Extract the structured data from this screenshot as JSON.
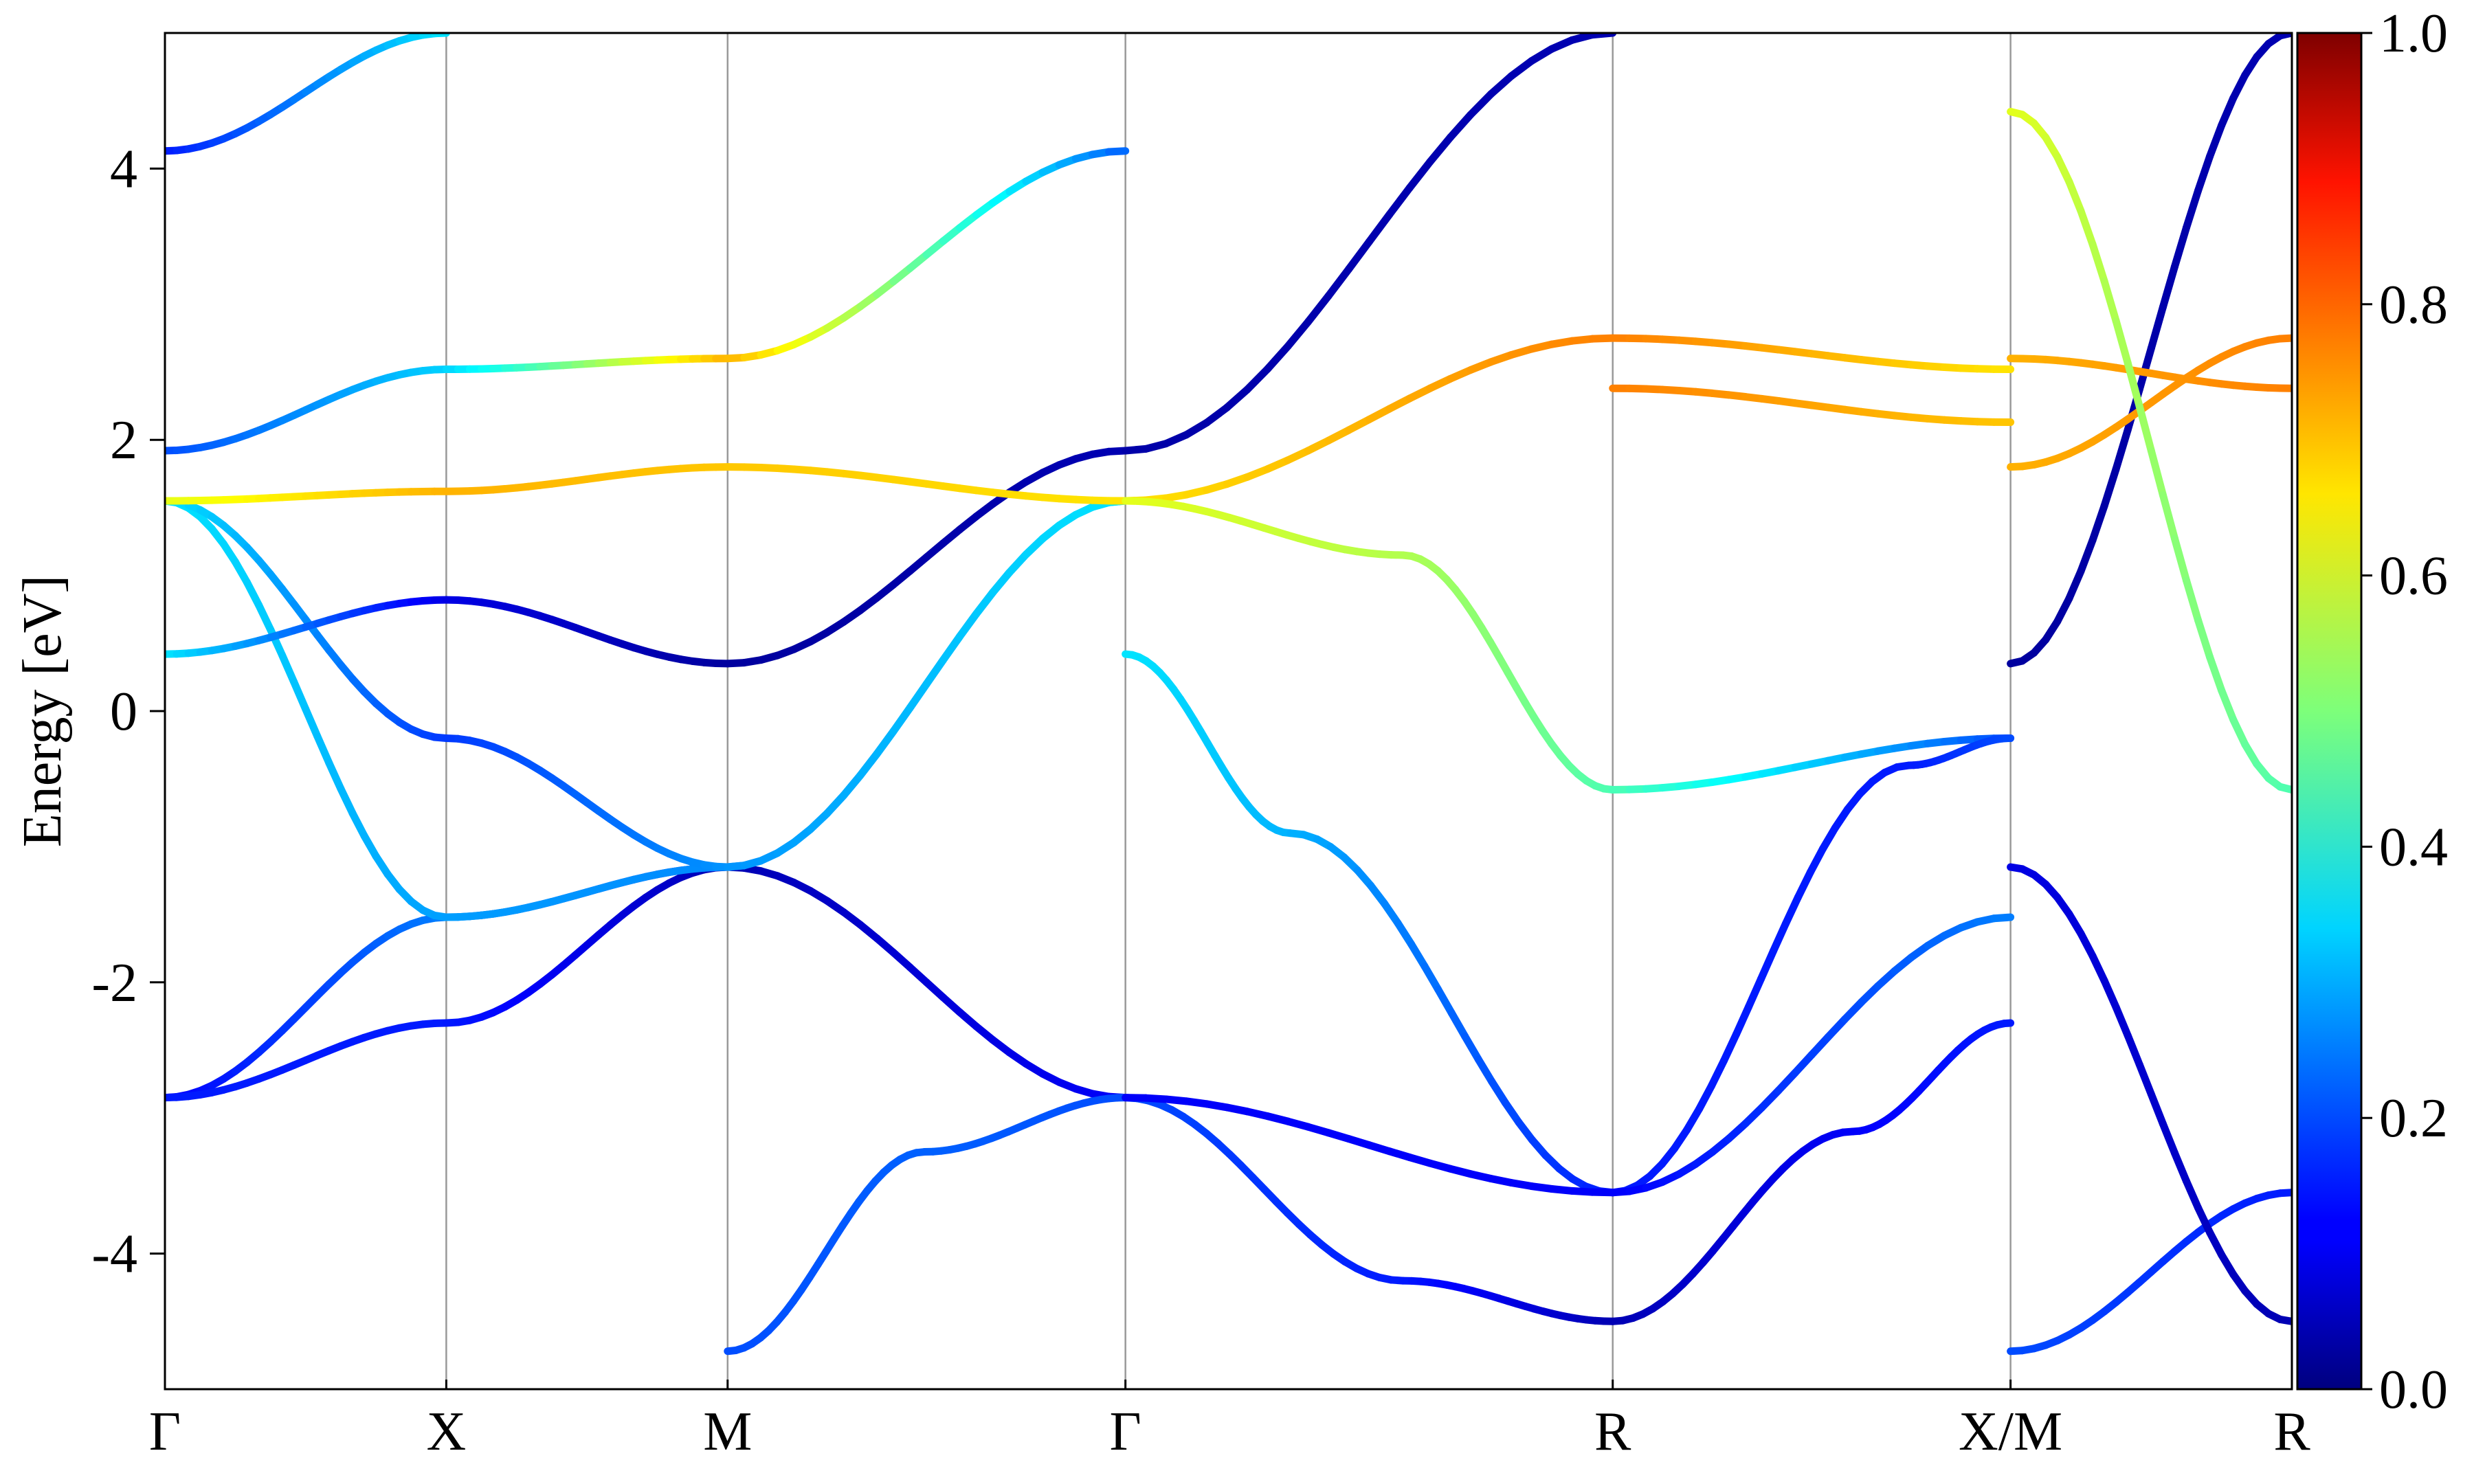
{
  "chart_data": {
    "type": "line",
    "title": "",
    "xlabel": "",
    "ylabel": "Energy [eV]",
    "ylim": [
      -5,
      5
    ],
    "yticks": [
      -4,
      -2,
      0,
      2,
      4
    ],
    "k_points": [
      {
        "label": "Γ",
        "x": 0.0
      },
      {
        "label": "X",
        "x": 0.5
      },
      {
        "label": "M",
        "x": 1.0
      },
      {
        "label": "Γ",
        "x": 1.707
      },
      {
        "label": "R",
        "x": 2.573
      },
      {
        "label": "X/M",
        "x": 3.28
      },
      {
        "label": "R",
        "x": 3.78
      }
    ],
    "grid": "vertical lines at high-symmetry k-points",
    "colorbar": {
      "colormap": "jet",
      "range": [
        0.0,
        1.0
      ],
      "ticks": [
        "0.0",
        "0.2",
        "0.4",
        "0.6",
        "0.8",
        "1.0"
      ]
    },
    "series": [
      {
        "points": [
          [
            0,
            -2.85,
            0.12
          ],
          [
            0.5,
            -1.52,
            0.25
          ],
          [
            1.0,
            -1.15,
            0.1
          ]
        ]
      },
      {
        "points": [
          [
            0,
            -2.85,
            0.15
          ],
          [
            0.5,
            -2.3,
            0.15
          ],
          [
            1.0,
            -1.15,
            0.05
          ],
          [
            1.707,
            -2.85,
            0.12
          ]
        ]
      },
      {
        "points": [
          [
            0,
            1.55,
            0.35
          ],
          [
            0.5,
            -1.52,
            0.28
          ],
          [
            1.0,
            -1.15,
            0.26
          ],
          [
            1.707,
            1.55,
            0.35
          ]
        ]
      },
      {
        "points": [
          [
            0,
            1.55,
            0.35
          ],
          [
            0.5,
            -0.2,
            0.18
          ],
          [
            1.0,
            -1.15,
            0.27
          ],
          [
            1.707,
            1.55,
            0.35
          ]
        ]
      },
      {
        "points": [
          [
            0,
            0.42,
            0.35
          ],
          [
            0.5,
            0.82,
            0.1
          ],
          [
            1.0,
            0.35,
            0.03
          ],
          [
            1.707,
            1.92,
            0.05
          ]
        ]
      },
      {
        "points": [
          [
            0,
            1.92,
            0.2
          ],
          [
            0.5,
            2.52,
            0.33
          ],
          [
            1.0,
            2.6,
            0.7
          ],
          [
            1.707,
            4.13,
            0.22
          ]
        ]
      },
      {
        "points": [
          [
            0,
            4.13,
            0.15
          ],
          [
            0.5,
            5.0,
            0.35
          ]
        ]
      },
      {
        "points": [
          [
            0,
            1.55,
            0.6
          ],
          [
            0.5,
            1.62,
            0.7
          ],
          [
            1.0,
            1.8,
            0.68
          ],
          [
            1.707,
            1.55,
            0.65
          ]
        ]
      },
      {
        "points": [
          [
            1.0,
            -4.72,
            0.2
          ],
          [
            1.35,
            -3.25,
            0.22
          ],
          [
            1.707,
            -2.85,
            0.2
          ],
          [
            2.2,
            -4.2,
            0.15
          ],
          [
            2.573,
            -4.5,
            0.05
          ],
          [
            3.0,
            -3.1,
            0.12
          ],
          [
            3.28,
            -2.3,
            0.15
          ]
        ]
      },
      {
        "points": [
          [
            1.707,
            1.92,
            0.04
          ],
          [
            2.573,
            5.0,
            0.05
          ]
        ]
      },
      {
        "points": [
          [
            1.707,
            1.55,
            0.65
          ],
          [
            2.573,
            2.75,
            0.75
          ],
          [
            3.28,
            2.52,
            0.65
          ]
        ]
      },
      {
        "points": [
          [
            1.707,
            1.55,
            0.6
          ],
          [
            2.2,
            1.15,
            0.55
          ],
          [
            2.573,
            -0.58,
            0.45
          ],
          [
            3.28,
            -0.2,
            0.2
          ]
        ]
      },
      {
        "points": [
          [
            1.707,
            0.42,
            0.35
          ],
          [
            2.0,
            -0.9,
            0.3
          ],
          [
            2.573,
            -3.55,
            0.15
          ],
          [
            3.1,
            -0.4,
            0.15
          ],
          [
            3.28,
            -0.2,
            0.2
          ]
        ]
      },
      {
        "points": [
          [
            1.707,
            -2.85,
            0.12
          ],
          [
            2.573,
            -3.55,
            0.12
          ],
          [
            3.28,
            -1.52,
            0.25
          ]
        ]
      },
      {
        "points": [
          [
            2.573,
            2.38,
            0.75
          ],
          [
            3.28,
            2.13,
            0.68
          ]
        ]
      },
      {
        "points": [
          [
            3.28,
            0.35,
            0.03
          ],
          [
            3.78,
            5.0,
            0.05
          ]
        ]
      },
      {
        "points": [
          [
            3.28,
            -4.72,
            0.2
          ],
          [
            3.78,
            -3.55,
            0.15
          ]
        ]
      },
      {
        "points": [
          [
            3.28,
            -1.15,
            0.1
          ],
          [
            3.78,
            -4.5,
            0.05
          ]
        ]
      },
      {
        "points": [
          [
            3.28,
            1.8,
            0.7
          ],
          [
            3.78,
            2.75,
            0.75
          ]
        ]
      },
      {
        "points": [
          [
            3.28,
            2.6,
            0.7
          ],
          [
            3.78,
            2.38,
            0.75
          ]
        ]
      },
      {
        "points": [
          [
            3.28,
            4.42,
            0.6
          ],
          [
            3.78,
            -0.58,
            0.45
          ]
        ]
      }
    ]
  }
}
